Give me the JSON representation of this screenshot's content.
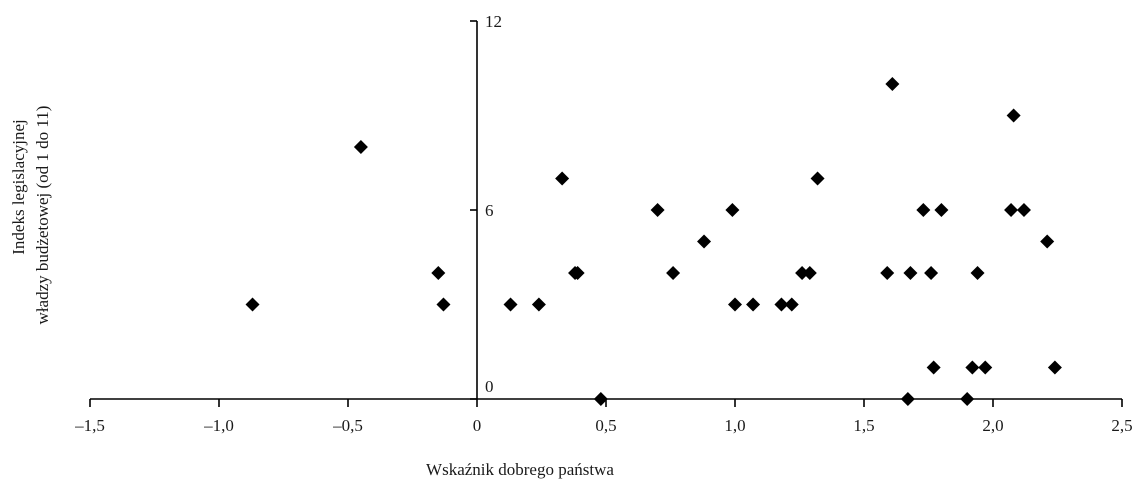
{
  "chart_data": {
    "type": "scatter",
    "title": "",
    "xlabel": "Wskaźnik dobrego państwa",
    "ylabel_lines": [
      "Indeks legislacyjnej",
      "władzy budżetowej (od 1 do 11)"
    ],
    "xlim": [
      -1.5,
      2.5
    ],
    "ylim": [
      0,
      12
    ],
    "x_ticks": [
      {
        "value": -1.5,
        "label": "–1,5"
      },
      {
        "value": -1.0,
        "label": "–1,0"
      },
      {
        "value": -0.5,
        "label": "–0,5"
      },
      {
        "value": 0,
        "label": "0"
      },
      {
        "value": 0.5,
        "label": "0,5"
      },
      {
        "value": 1.0,
        "label": "1,0"
      },
      {
        "value": 1.5,
        "label": "1,5"
      },
      {
        "value": 2.0,
        "label": "2,0"
      },
      {
        "value": 2.5,
        "label": "2,5"
      }
    ],
    "y_ticks": [
      {
        "value": 0,
        "label": "0"
      },
      {
        "value": 6,
        "label": "6"
      },
      {
        "value": 12,
        "label": "12"
      }
    ],
    "grid": false,
    "marker": "diamond",
    "marker_color": "#000000",
    "points": [
      {
        "x": -0.87,
        "y": 3
      },
      {
        "x": -0.45,
        "y": 8
      },
      {
        "x": -0.15,
        "y": 4
      },
      {
        "x": -0.13,
        "y": 3
      },
      {
        "x": 0.13,
        "y": 3
      },
      {
        "x": 0.24,
        "y": 3
      },
      {
        "x": 0.33,
        "y": 7
      },
      {
        "x": 0.38,
        "y": 4
      },
      {
        "x": 0.39,
        "y": 4
      },
      {
        "x": 0.48,
        "y": 0
      },
      {
        "x": 0.7,
        "y": 6
      },
      {
        "x": 0.76,
        "y": 4
      },
      {
        "x": 0.88,
        "y": 5
      },
      {
        "x": 0.99,
        "y": 6
      },
      {
        "x": 1.0,
        "y": 3
      },
      {
        "x": 1.07,
        "y": 3
      },
      {
        "x": 1.18,
        "y": 3
      },
      {
        "x": 1.22,
        "y": 3
      },
      {
        "x": 1.26,
        "y": 4
      },
      {
        "x": 1.29,
        "y": 4
      },
      {
        "x": 1.32,
        "y": 7
      },
      {
        "x": 1.59,
        "y": 4
      },
      {
        "x": 1.61,
        "y": 10
      },
      {
        "x": 1.67,
        "y": 0
      },
      {
        "x": 1.68,
        "y": 4
      },
      {
        "x": 1.73,
        "y": 6
      },
      {
        "x": 1.76,
        "y": 4
      },
      {
        "x": 1.77,
        "y": 1
      },
      {
        "x": 1.8,
        "y": 6
      },
      {
        "x": 1.9,
        "y": 0
      },
      {
        "x": 1.92,
        "y": 1
      },
      {
        "x": 1.94,
        "y": 4
      },
      {
        "x": 1.97,
        "y": 1
      },
      {
        "x": 2.07,
        "y": 6
      },
      {
        "x": 2.08,
        "y": 9
      },
      {
        "x": 2.12,
        "y": 6
      },
      {
        "x": 2.21,
        "y": 5
      },
      {
        "x": 2.24,
        "y": 1
      }
    ]
  }
}
